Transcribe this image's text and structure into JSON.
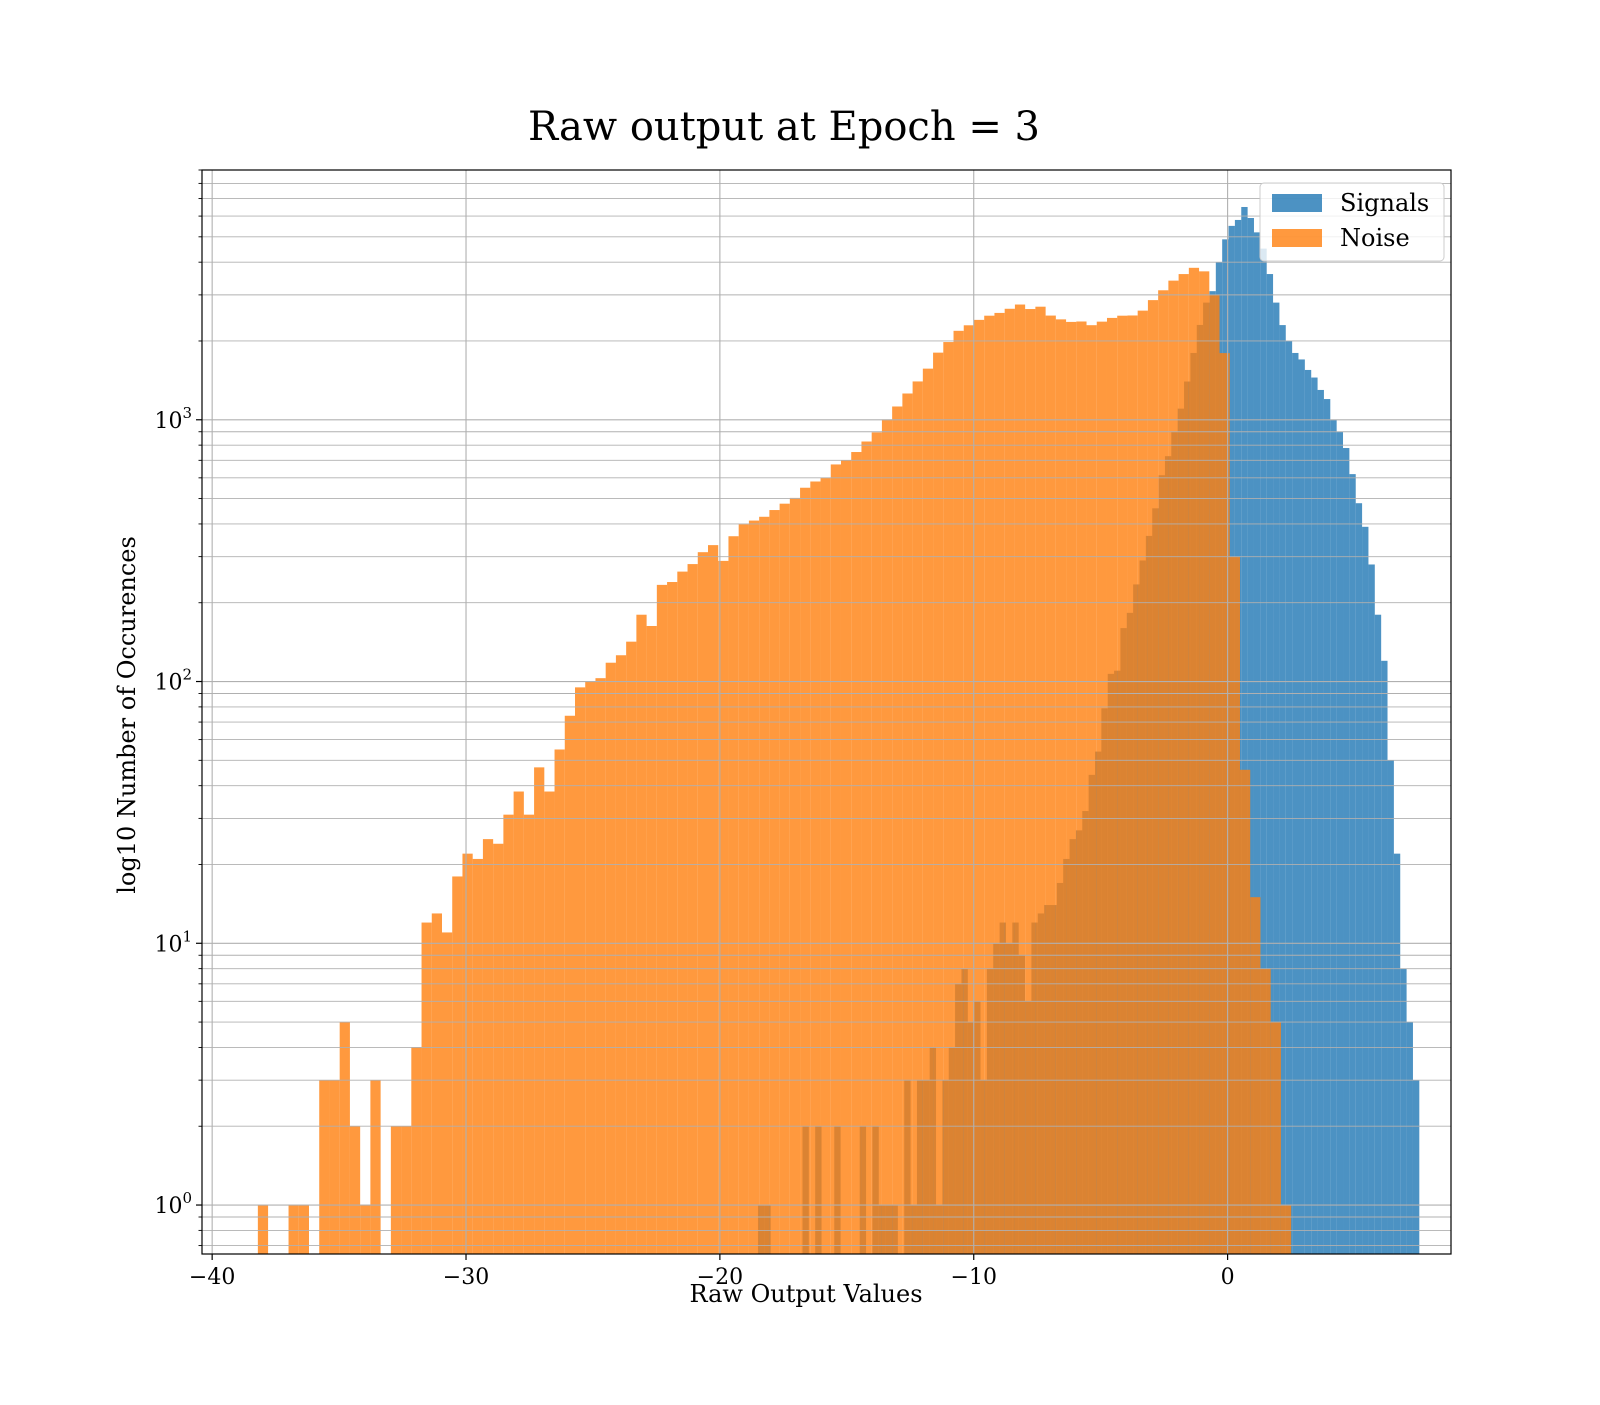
{
  "chart_data": {
    "type": "histogram",
    "title": "Raw output at Epoch = 3",
    "xlabel": "Raw Output Values",
    "ylabel": "log10 Number of Occurences",
    "yscale": "log",
    "xlim": [
      -40.4,
      8.8
    ],
    "ylim": [
      0.65,
      9000
    ],
    "xticks": [
      -40,
      -30,
      -20,
      -10,
      0
    ],
    "xtick_labels": [
      "−40",
      "−30",
      "−20",
      "−10",
      "0"
    ],
    "yticks": [
      1,
      10,
      100,
      1000
    ],
    "ytick_labels": [
      {
        "base": "10",
        "exp": "0"
      },
      {
        "base": "10",
        "exp": "1"
      },
      {
        "base": "10",
        "exp": "2"
      },
      {
        "base": "10",
        "exp": "3"
      }
    ],
    "grid": true,
    "legend_position": "upper right",
    "series": [
      {
        "name": "Signals",
        "color": "#1f77b4",
        "alpha": 0.8,
        "bin_start": -18.5,
        "bin_width": 0.2505,
        "counts": [
          1,
          1,
          0,
          0,
          0,
          0,
          0,
          2,
          0,
          2,
          0,
          0,
          2,
          0,
          0,
          0,
          2,
          0,
          2,
          1,
          1,
          1,
          0,
          3,
          1,
          3,
          3,
          4,
          1,
          3,
          4,
          7,
          8,
          5,
          6,
          3,
          8,
          10,
          12,
          10,
          12,
          9,
          6,
          12,
          13,
          14,
          14,
          17,
          21,
          25,
          27,
          32,
          44,
          54,
          79,
          107,
          110,
          160,
          183,
          235,
          290,
          360,
          459,
          614,
          726,
          899,
          1103,
          1400,
          1800,
          2303,
          2803,
          3100,
          4004,
          4890,
          5505,
          5800,
          6500,
          5900,
          5200,
          4507,
          3604,
          2803,
          2300,
          2000,
          1800,
          1700,
          1550,
          1450,
          1300,
          1200,
          1000,
          900,
          780,
          620,
          480,
          390,
          280,
          180,
          120,
          50,
          22,
          8,
          5,
          3
        ]
      },
      {
        "name": "Noise",
        "color": "#ff7f0e",
        "alpha": 0.8,
        "bin_start": -38.2,
        "bin_width": 0.403,
        "counts": [
          1,
          0,
          0,
          1,
          1,
          0,
          3,
          3,
          5,
          2,
          1,
          3,
          0,
          2,
          2,
          4,
          12,
          13,
          11,
          18,
          22,
          21,
          25,
          24,
          31,
          38,
          31,
          47,
          38,
          55,
          74,
          95,
          100,
          103,
          118,
          126,
          142,
          180,
          163,
          234,
          240,
          263,
          281,
          312,
          332,
          289,
          359,
          399,
          412,
          426,
          452,
          478,
          503,
          550,
          581,
          599,
          675,
          699,
          753,
          826,
          895,
          1003,
          1124,
          1260,
          1401,
          1568,
          1805,
          1981,
          2187,
          2296,
          2408,
          2498,
          2560,
          2655,
          2756,
          2649,
          2704,
          2501,
          2419,
          2365,
          2374,
          2298,
          2371,
          2450,
          2498,
          2503,
          2612,
          2865,
          3124,
          3401,
          3603,
          3807,
          3690,
          3005,
          1798,
          299,
          46,
          15,
          8,
          5,
          1
        ]
      }
    ]
  }
}
